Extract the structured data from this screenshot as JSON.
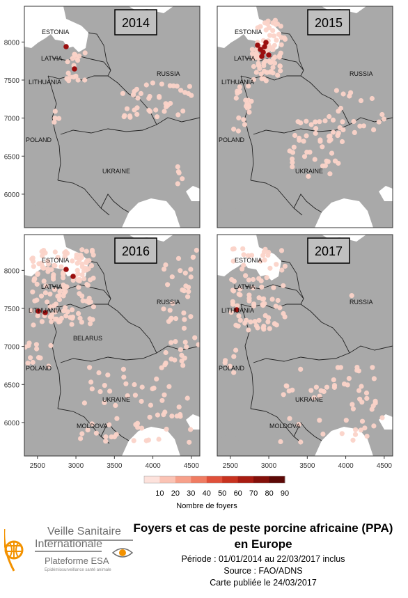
{
  "panels": [
    {
      "year": "2014"
    },
    {
      "year": "2015"
    },
    {
      "year": "2016"
    },
    {
      "year": "2017"
    }
  ],
  "country_labels": {
    "estonia": "ESTONIA",
    "latvia": "LATVIA",
    "lithuania": "LITHUANIA",
    "russia": "RUSSIA",
    "poland": "POLAND",
    "ukraine": "UKRAINE",
    "belarus": "BELARUS",
    "moldova": "MOLDOVA"
  },
  "y_axis_ticks": [
    "8000",
    "7500",
    "7000",
    "6500",
    "6000"
  ],
  "x_axis_ticks": [
    "2500",
    "3000",
    "3500",
    "4000",
    "4500"
  ],
  "legend": {
    "title": "Nombre de foyers",
    "ticks": [
      "10",
      "20",
      "30",
      "40",
      "50",
      "60",
      "70",
      "80",
      "90"
    ],
    "colors": [
      "#fde2dc",
      "#fbc3b4",
      "#f7a08a",
      "#f07c62",
      "#e0503a",
      "#c8321f",
      "#a81c12",
      "#84100a",
      "#5c0806"
    ]
  },
  "logo": {
    "line1": "Veille Sanitaire",
    "line2": "Internationale",
    "line3": "Plateforme ESA",
    "line4": "Epidémiosurveillance santé animale"
  },
  "title": {
    "line1": "Foyers et cas de peste porcine africaine (PPA)",
    "line2": "en Europe",
    "period": "Période : 01/01/2014 au 22/03/2017 inclus",
    "source": "Source : FAO/ADNS",
    "published": "Carte publiée le 24/03/2017"
  },
  "colors": {
    "map_background": "#a9a9a9",
    "land": "#ffffff",
    "outbreak_low": "#fbd3c8",
    "outbreak_high": "#9b0e0e",
    "logo_orange": "#f39200",
    "logo_gray": "#6f6f6f"
  }
}
